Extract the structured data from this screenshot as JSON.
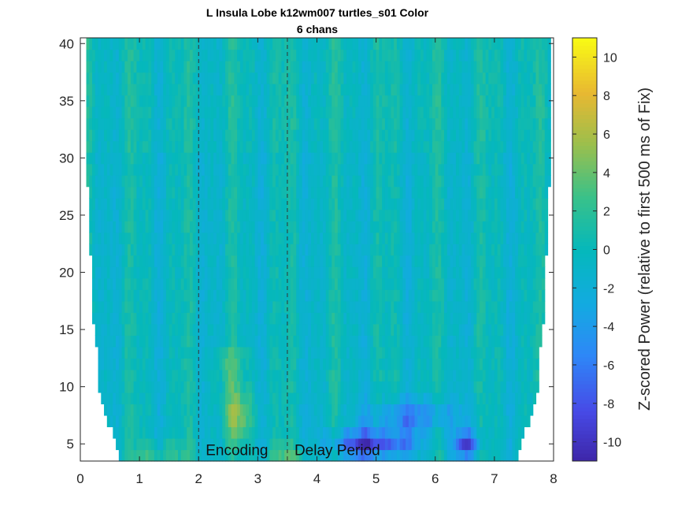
{
  "chart_data": {
    "type": "heatmap",
    "title": "L Insula Lobe k12wm007 turtles_s01 Color",
    "subtitle": "6 chans",
    "xlabel": "",
    "ylabel": "",
    "xlim": [
      0,
      8
    ],
    "ylim": [
      3.5,
      40.5
    ],
    "x_ticks": [
      "0",
      "1",
      "2",
      "3",
      "4",
      "5",
      "6",
      "7",
      "8"
    ],
    "y_ticks": [
      "5",
      "10",
      "15",
      "20",
      "25",
      "30",
      "35",
      "40"
    ],
    "colorbar": {
      "label": "Z-scored Power (relative to first 500 ms of Fix)",
      "range": [
        -11,
        11
      ],
      "ticks": [
        "10",
        "8",
        "6",
        "4",
        "2",
        "0",
        "-2",
        "-4",
        "-6",
        "-8",
        "-10"
      ],
      "colormap": "parula"
    },
    "event_lines": [
      {
        "x": 2.0,
        "label": "Encoding"
      },
      {
        "x": 3.5,
        "label": "Delay Period"
      }
    ],
    "grid": false,
    "approximate_features": [
      {
        "x": 2.65,
        "freq": 7.5,
        "z": 6,
        "note": "high-power blob during Encoding"
      },
      {
        "x": 4.9,
        "freq": 5,
        "z": -10,
        "note": "low-power band in Delay Period"
      },
      {
        "x": 6.5,
        "freq": 5,
        "z": -10,
        "note": "low-power spot in Delay Period"
      },
      {
        "x": 3.5,
        "freq": 4,
        "z": 4,
        "note": "elevated low-frequency power near Delay onset"
      }
    ]
  }
}
